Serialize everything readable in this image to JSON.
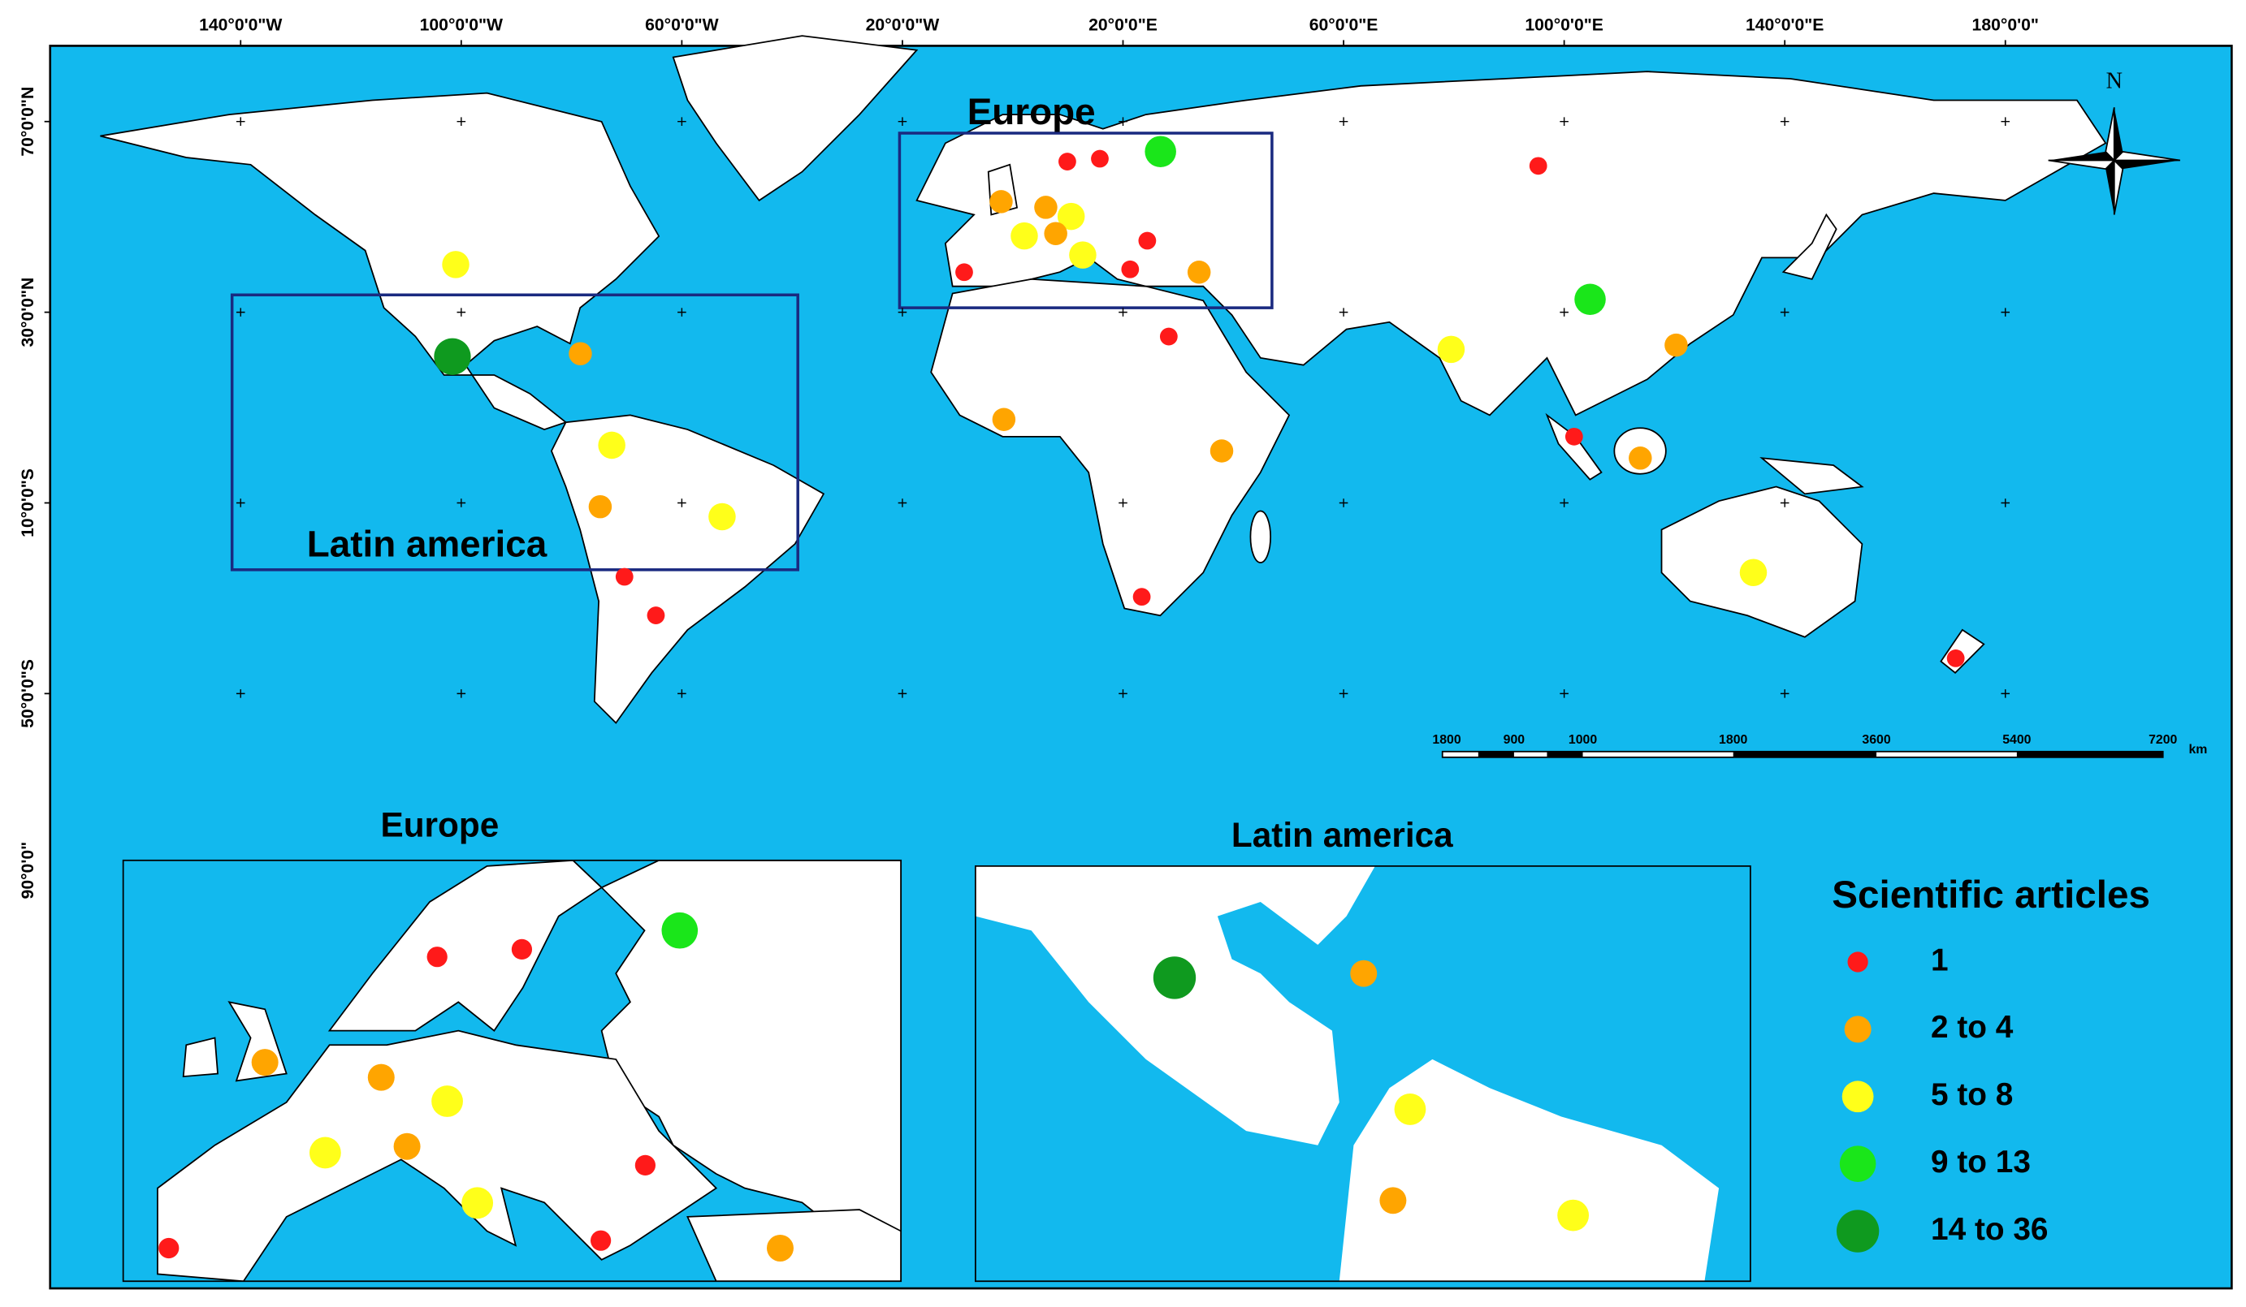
{
  "map": {
    "lon_ticks": [
      {
        "value": -140,
        "label": "140°0'0\"W"
      },
      {
        "value": -100,
        "label": "100°0'0\"W"
      },
      {
        "value": -60,
        "label": "60°0'0\"W"
      },
      {
        "value": -20,
        "label": "20°0'0\"W"
      },
      {
        "value": 20,
        "label": "20°0'0\"E"
      },
      {
        "value": 60,
        "label": "60°0'0\"E"
      },
      {
        "value": 100,
        "label": "100°0'0\"E"
      },
      {
        "value": 140,
        "label": "140°0'0\"E"
      },
      {
        "value": 180,
        "label": "180°0'0\""
      }
    ],
    "lat_ticks": [
      {
        "value": 70,
        "label": "70°0'0\"N"
      },
      {
        "value": 30,
        "label": "30°0'0\"N"
      },
      {
        "value": -10,
        "label": "10°0'0\"S"
      },
      {
        "value": -50,
        "label": "50°0'0\"S"
      }
    ],
    "extra_lat_label": "90°0'0\"",
    "region_labels": {
      "europe": "Europe",
      "latin_america": "Latin america"
    },
    "inset_titles": {
      "europe": "Europe",
      "latin_america": "Latin america"
    },
    "north": "N",
    "scale_bar": {
      "labels": [
        "1800",
        "900",
        "1000",
        "1800",
        "3600",
        "5400",
        "7200"
      ],
      "unit": "km"
    },
    "legend": {
      "title": "Scientific articles",
      "classes": [
        {
          "label": "1",
          "color": "#ff1a1a"
        },
        {
          "label": "2 to 4",
          "color": "#ffa500"
        },
        {
          "label": "5 to 8",
          "color": "#ffff1a"
        },
        {
          "label": "9 to 13",
          "color": "#1ae61a"
        },
        {
          "label": "14 to 36",
          "color": "#0f9a1f"
        }
      ]
    },
    "points": [
      {
        "lon": -101,
        "lat": 40,
        "class": 2
      },
      {
        "lon": -101.6,
        "lat": 20.7,
        "class": 4
      },
      {
        "lon": -78.4,
        "lat": 21.3,
        "class": 1
      },
      {
        "lon": -72.7,
        "lat": 2.1,
        "class": 2
      },
      {
        "lon": -74.8,
        "lat": -10.8,
        "class": 1
      },
      {
        "lon": -52.7,
        "lat": -12.9,
        "class": 2
      },
      {
        "lon": -70.4,
        "lat": -25.5,
        "class": 0
      },
      {
        "lon": -64.7,
        "lat": -33.6,
        "class": 0
      },
      {
        "lon": 9.9,
        "lat": 61.6,
        "class": 0
      },
      {
        "lon": 15.8,
        "lat": 62.2,
        "class": 0
      },
      {
        "lon": 26.8,
        "lat": 63.7,
        "class": 3
      },
      {
        "lon": -2.1,
        "lat": 53.2,
        "class": 1
      },
      {
        "lon": 6,
        "lat": 52,
        "class": 1
      },
      {
        "lon": 10.6,
        "lat": 50.1,
        "class": 2
      },
      {
        "lon": 2.1,
        "lat": 46,
        "class": 2
      },
      {
        "lon": 7.8,
        "lat": 46.5,
        "class": 1
      },
      {
        "lon": 12.7,
        "lat": 42,
        "class": 2
      },
      {
        "lon": 24.4,
        "lat": 45,
        "class": 0
      },
      {
        "lon": -8.8,
        "lat": 38.4,
        "class": 0
      },
      {
        "lon": 21.3,
        "lat": 39,
        "class": 0
      },
      {
        "lon": 33.8,
        "lat": 38.4,
        "class": 1
      },
      {
        "lon": 28.3,
        "lat": 24.9,
        "class": 0
      },
      {
        "lon": -1.6,
        "lat": 7.5,
        "class": 1
      },
      {
        "lon": 37.9,
        "lat": 0.9,
        "class": 1
      },
      {
        "lon": 23.4,
        "lat": -29.7,
        "class": 0
      },
      {
        "lon": 95.3,
        "lat": 60.7,
        "class": 0
      },
      {
        "lon": 104.7,
        "lat": 32.7,
        "class": 3
      },
      {
        "lon": 79.5,
        "lat": 22.2,
        "class": 2
      },
      {
        "lon": 120.3,
        "lat": 23.1,
        "class": 1
      },
      {
        "lon": 101.8,
        "lat": 3.9,
        "class": 0
      },
      {
        "lon": 113.8,
        "lat": -0.6,
        "class": 1
      },
      {
        "lon": 134.3,
        "lat": -24.6,
        "class": 2
      },
      {
        "lon": 171,
        "lat": -42.6,
        "class": 0
      }
    ]
  }
}
